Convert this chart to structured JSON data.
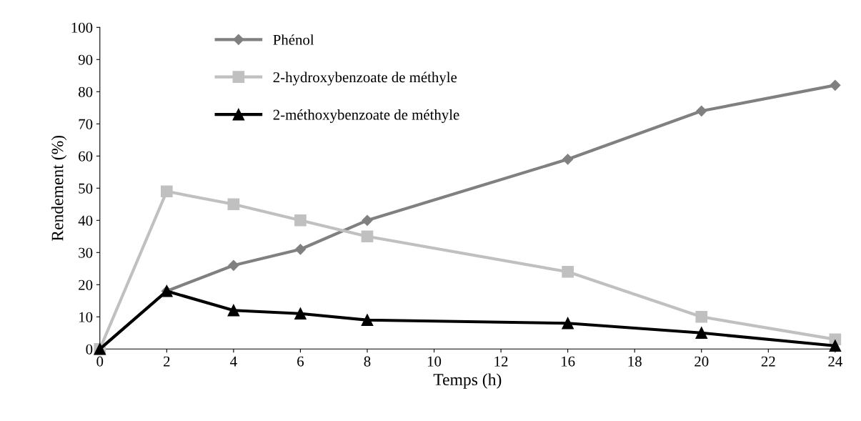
{
  "chart_data": {
    "type": "line",
    "xlabel": "Temps (h)",
    "ylabel": "Rendement (%)",
    "categories": [
      "0",
      "2",
      "4",
      "6",
      "8",
      "10",
      "12",
      "16",
      "18",
      "20",
      "22",
      "24"
    ],
    "ylim": [
      0,
      100
    ],
    "yticks": [
      0,
      10,
      20,
      30,
      40,
      50,
      60,
      70,
      80,
      90,
      100
    ],
    "grid": false,
    "legend": "top left",
    "series": [
      {
        "name": "Phénol",
        "color": "#808080",
        "marker": "diamond",
        "values": [
          0,
          18,
          26,
          31,
          40,
          null,
          null,
          59,
          null,
          74,
          null,
          82
        ]
      },
      {
        "name": "2-hydroxybenzoate de méthyle",
        "color": "#c0c0c0",
        "marker": "square",
        "values": [
          0,
          49,
          45,
          40,
          35,
          null,
          null,
          24,
          null,
          10,
          null,
          3
        ]
      },
      {
        "name": "2-méthoxybenzoate de méthyle",
        "color": "#000000",
        "marker": "triangle",
        "values": [
          0,
          18,
          12,
          11,
          9,
          null,
          null,
          8,
          null,
          5,
          null,
          1
        ]
      }
    ]
  }
}
